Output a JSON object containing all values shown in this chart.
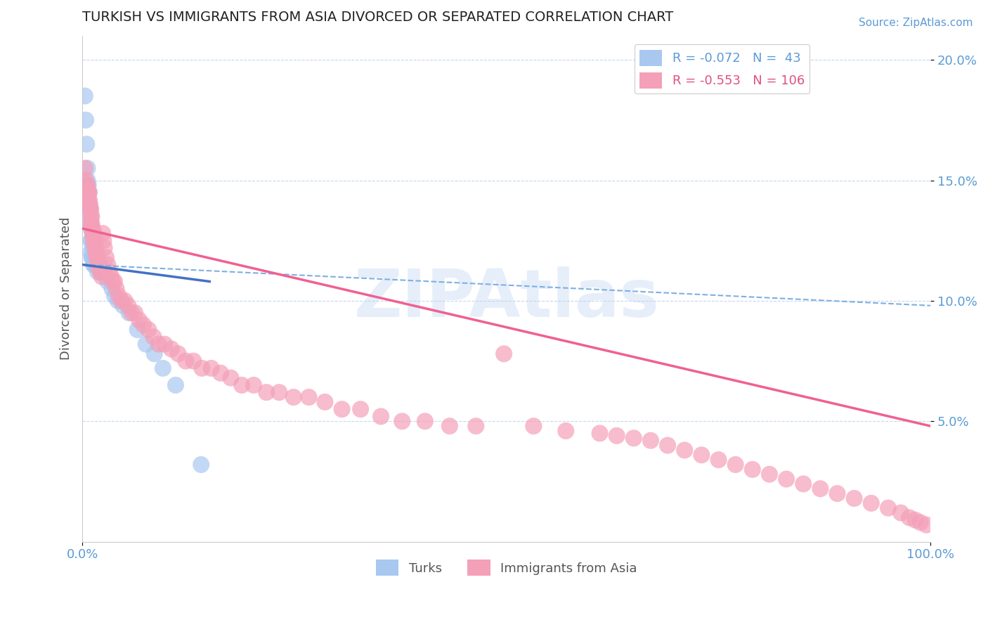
{
  "title": "TURKISH VS IMMIGRANTS FROM ASIA DIVORCED OR SEPARATED CORRELATION CHART",
  "source_text": "Source: ZipAtlas.com",
  "ylabel": "Divorced or Separated",
  "watermark": "ZIPAtlas",
  "xlim": [
    0.0,
    1.0
  ],
  "ylim": [
    0.0,
    0.21
  ],
  "yticks": [
    0.05,
    0.1,
    0.15,
    0.2
  ],
  "ytick_labels": [
    "5.0%",
    "10.0%",
    "15.0%",
    "20.0%"
  ],
  "xticks": [
    0.0,
    1.0
  ],
  "xtick_labels": [
    "0.0%",
    "100.0%"
  ],
  "title_color": "#222222",
  "axis_color": "#5b9bd5",
  "background_color": "#ffffff",
  "series": [
    {
      "name": "Turks",
      "R": -0.072,
      "N": 43,
      "color_scatter": "#a8c8f0",
      "color_line": "#4472c4",
      "line_style": "solid",
      "x": [
        0.003,
        0.004,
        0.005,
        0.006,
        0.006,
        0.007,
        0.007,
        0.007,
        0.008,
        0.008,
        0.009,
        0.009,
        0.01,
        0.01,
        0.01,
        0.01,
        0.011,
        0.011,
        0.012,
        0.012,
        0.013,
        0.013,
        0.014,
        0.015,
        0.016,
        0.017,
        0.018,
        0.02,
        0.022,
        0.025,
        0.028,
        0.03,
        0.035,
        0.038,
        0.042,
        0.048,
        0.055,
        0.065,
        0.075,
        0.085,
        0.095,
        0.11,
        0.14
      ],
      "y": [
        0.185,
        0.175,
        0.165,
        0.155,
        0.15,
        0.148,
        0.145,
        0.142,
        0.145,
        0.14,
        0.138,
        0.135,
        0.132,
        0.13,
        0.125,
        0.12,
        0.125,
        0.118,
        0.122,
        0.118,
        0.118,
        0.115,
        0.115,
        0.118,
        0.115,
        0.115,
        0.112,
        0.115,
        0.112,
        0.112,
        0.11,
        0.108,
        0.105,
        0.102,
        0.1,
        0.098,
        0.095,
        0.088,
        0.082,
        0.078,
        0.072,
        0.065,
        0.032
      ]
    },
    {
      "name": "Immigrants from Asia",
      "R": -0.553,
      "N": 106,
      "color_scatter": "#f4a0b8",
      "color_line": "#f06090",
      "line_style": "solid",
      "x": [
        0.003,
        0.004,
        0.005,
        0.005,
        0.006,
        0.006,
        0.007,
        0.007,
        0.008,
        0.008,
        0.009,
        0.009,
        0.01,
        0.01,
        0.01,
        0.011,
        0.011,
        0.012,
        0.012,
        0.013,
        0.013,
        0.014,
        0.014,
        0.015,
        0.015,
        0.016,
        0.016,
        0.017,
        0.017,
        0.018,
        0.018,
        0.019,
        0.02,
        0.021,
        0.022,
        0.023,
        0.024,
        0.025,
        0.026,
        0.028,
        0.03,
        0.032,
        0.034,
        0.036,
        0.038,
        0.04,
        0.043,
        0.046,
        0.05,
        0.054,
        0.058,
        0.062,
        0.067,
        0.072,
        0.078,
        0.084,
        0.09,
        0.097,
        0.105,
        0.113,
        0.122,
        0.131,
        0.141,
        0.152,
        0.163,
        0.175,
        0.188,
        0.202,
        0.217,
        0.232,
        0.249,
        0.267,
        0.286,
        0.306,
        0.328,
        0.352,
        0.377,
        0.404,
        0.433,
        0.464,
        0.497,
        0.532,
        0.57,
        0.61,
        0.63,
        0.65,
        0.67,
        0.69,
        0.71,
        0.73,
        0.75,
        0.77,
        0.79,
        0.81,
        0.83,
        0.85,
        0.87,
        0.89,
        0.91,
        0.93,
        0.95,
        0.965,
        0.975,
        0.982,
        0.988,
        0.995
      ],
      "y": [
        0.155,
        0.15,
        0.148,
        0.145,
        0.148,
        0.145,
        0.142,
        0.14,
        0.145,
        0.142,
        0.14,
        0.138,
        0.138,
        0.135,
        0.132,
        0.135,
        0.132,
        0.13,
        0.128,
        0.128,
        0.125,
        0.128,
        0.125,
        0.125,
        0.122,
        0.122,
        0.12,
        0.12,
        0.118,
        0.118,
        0.115,
        0.115,
        0.115,
        0.112,
        0.112,
        0.11,
        0.128,
        0.125,
        0.122,
        0.118,
        0.115,
        0.112,
        0.11,
        0.108,
        0.108,
        0.105,
        0.102,
        0.1,
        0.1,
        0.098,
        0.095,
        0.095,
        0.092,
        0.09,
        0.088,
        0.085,
        0.082,
        0.082,
        0.08,
        0.078,
        0.075,
        0.075,
        0.072,
        0.072,
        0.07,
        0.068,
        0.065,
        0.065,
        0.062,
        0.062,
        0.06,
        0.06,
        0.058,
        0.055,
        0.055,
        0.052,
        0.05,
        0.05,
        0.048,
        0.048,
        0.078,
        0.048,
        0.046,
        0.045,
        0.044,
        0.043,
        0.042,
        0.04,
        0.038,
        0.036,
        0.034,
        0.032,
        0.03,
        0.028,
        0.026,
        0.024,
        0.022,
        0.02,
        0.018,
        0.016,
        0.014,
        0.012,
        0.01,
        0.009,
        0.008,
        0.007
      ]
    }
  ]
}
